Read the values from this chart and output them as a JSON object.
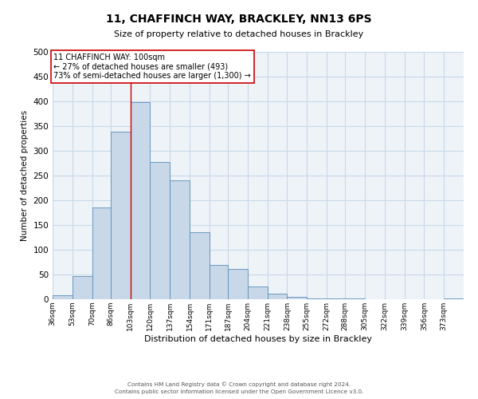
{
  "title": "11, CHAFFINCH WAY, BRACKLEY, NN13 6PS",
  "subtitle": "Size of property relative to detached houses in Brackley",
  "xlabel": "Distribution of detached houses by size in Brackley",
  "ylabel": "Number of detached properties",
  "bin_labels": [
    "36sqm",
    "53sqm",
    "70sqm",
    "86sqm",
    "103sqm",
    "120sqm",
    "137sqm",
    "154sqm",
    "171sqm",
    "187sqm",
    "204sqm",
    "221sqm",
    "238sqm",
    "255sqm",
    "272sqm",
    "288sqm",
    "305sqm",
    "322sqm",
    "339sqm",
    "356sqm",
    "373sqm"
  ],
  "bin_edges": [
    36,
    53,
    70,
    86,
    103,
    120,
    137,
    154,
    171,
    187,
    204,
    221,
    238,
    255,
    272,
    288,
    305,
    322,
    339,
    356,
    373,
    390
  ],
  "bar_heights": [
    8,
    46,
    185,
    338,
    398,
    277,
    240,
    136,
    70,
    62,
    26,
    12,
    5,
    2,
    1,
    1,
    0,
    0,
    0,
    0,
    2
  ],
  "bar_color": "#c8d8e8",
  "bar_edge_color": "#5b8db8",
  "grid_color": "#c8d8e8",
  "vline_x": 103,
  "vline_color": "#cc0000",
  "annotation_title": "11 CHAFFINCH WAY: 100sqm",
  "annotation_line1": "← 27% of detached houses are smaller (493)",
  "annotation_line2": "73% of semi-detached houses are larger (1,300) →",
  "annotation_box_color": "#ffffff",
  "annotation_box_edge_color": "#cc0000",
  "ylim": [
    0,
    500
  ],
  "yticks": [
    0,
    50,
    100,
    150,
    200,
    250,
    300,
    350,
    400,
    450,
    500
  ],
  "footer_line1": "Contains HM Land Registry data © Crown copyright and database right 2024.",
  "footer_line2": "Contains public sector information licensed under the Open Government Licence v3.0.",
  "background_color": "#ffffff",
  "plot_bg_color": "#eef3f8"
}
